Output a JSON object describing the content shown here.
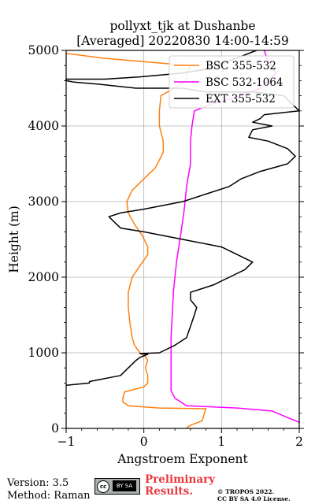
{
  "chart_data": {
    "type": "line",
    "title_line1": "pollyxt_tjk at Dushanbe",
    "title_line2": "[Averaged] 20220830 14:00-14:59",
    "xlabel": "Angstroem Exponent",
    "ylabel": "Height (m)",
    "xlim": [
      -1,
      2
    ],
    "ylim": [
      0,
      5000
    ],
    "xticks": [
      "−1",
      "0",
      "1",
      "2"
    ],
    "xtick_values": [
      -1,
      0,
      1,
      2
    ],
    "yticks": [
      "0",
      "1000",
      "2000",
      "3000",
      "4000",
      "5000"
    ],
    "ytick_values": [
      0,
      1000,
      2000,
      3000,
      4000,
      5000
    ],
    "grid": true,
    "legend_position": "top-right",
    "series": [
      {
        "name": "BSC 355-532",
        "color": "#ff7f0e",
        "points": [
          [
            0.55,
            10
          ],
          [
            0.62,
            50
          ],
          [
            0.75,
            100
          ],
          [
            0.78,
            200
          ],
          [
            0.8,
            260
          ],
          [
            0.2,
            270
          ],
          [
            -0.2,
            300
          ],
          [
            -0.27,
            350
          ],
          [
            -0.27,
            400
          ],
          [
            -0.25,
            480
          ],
          [
            0.0,
            550
          ],
          [
            0.05,
            600
          ],
          [
            0.05,
            700
          ],
          [
            0.02,
            800
          ],
          [
            0.05,
            900
          ],
          [
            0.02,
            950
          ],
          [
            -0.05,
            1000
          ],
          [
            -0.12,
            1100
          ],
          [
            -0.15,
            1200
          ],
          [
            -0.18,
            1400
          ],
          [
            -0.2,
            1600
          ],
          [
            -0.2,
            1800
          ],
          [
            -0.15,
            2000
          ],
          [
            -0.05,
            2150
          ],
          [
            0.05,
            2300
          ],
          [
            0.05,
            2400
          ],
          [
            -0.02,
            2550
          ],
          [
            -0.12,
            2700
          ],
          [
            -0.2,
            2850
          ],
          [
            -0.22,
            3000
          ],
          [
            -0.15,
            3150
          ],
          [
            0.0,
            3300
          ],
          [
            0.15,
            3450
          ],
          [
            0.25,
            3650
          ],
          [
            0.25,
            3800
          ],
          [
            0.2,
            4000
          ],
          [
            0.2,
            4200
          ],
          [
            0.22,
            4400
          ],
          [
            0.55,
            4600
          ],
          [
            0.55,
            4700
          ],
          [
            0.6,
            4800
          ],
          [
            0.35,
            4820
          ],
          [
            -0.55,
            4900
          ],
          [
            -1.0,
            4960
          ]
        ]
      },
      {
        "name": "BSC 532-1064",
        "color": "#ff00ff",
        "points": [
          [
            2.0,
            80
          ],
          [
            1.65,
            230
          ],
          [
            1.2,
            270
          ],
          [
            0.55,
            300
          ],
          [
            0.4,
            400
          ],
          [
            0.35,
            500
          ],
          [
            0.35,
            800
          ],
          [
            0.35,
            1200
          ],
          [
            0.38,
            1800
          ],
          [
            0.42,
            2200
          ],
          [
            0.48,
            2600
          ],
          [
            0.52,
            2900
          ],
          [
            0.55,
            3200
          ],
          [
            0.6,
            3500
          ],
          [
            0.6,
            3800
          ],
          [
            0.62,
            4000
          ],
          [
            0.65,
            4200
          ],
          [
            0.9,
            4300
          ],
          [
            1.2,
            4380
          ],
          [
            1.5,
            4500
          ],
          [
            1.7,
            4700
          ],
          [
            1.6,
            4850
          ],
          [
            1.55,
            5000
          ]
        ]
      },
      {
        "name": "EXT 355-532",
        "color": "#000000",
        "points": [
          [
            -1.0,
            570
          ],
          [
            -0.7,
            600
          ],
          [
            -0.7,
            620
          ],
          [
            -0.3,
            700
          ],
          [
            -0.2,
            800
          ],
          [
            -0.1,
            900
          ],
          [
            -0.05,
            940
          ],
          [
            0.05,
            980
          ],
          [
            -0.05,
            990
          ],
          [
            0.2,
            1000
          ],
          [
            0.4,
            1100
          ],
          [
            0.55,
            1200
          ],
          [
            0.6,
            1350
          ],
          [
            0.65,
            1500
          ],
          [
            0.68,
            1600
          ],
          [
            0.6,
            1700
          ],
          [
            0.6,
            1800
          ],
          [
            0.9,
            1900
          ],
          [
            1.1,
            2000
          ],
          [
            1.3,
            2100
          ],
          [
            1.4,
            2200
          ],
          [
            1.2,
            2300
          ],
          [
            1.0,
            2400
          ],
          [
            0.5,
            2500
          ],
          [
            0.0,
            2600
          ],
          [
            -0.3,
            2650
          ],
          [
            -0.35,
            2700
          ],
          [
            -0.45,
            2800
          ],
          [
            -0.3,
            2850
          ],
          [
            0.0,
            2900
          ],
          [
            0.5,
            3000
          ],
          [
            0.8,
            3100
          ],
          [
            1.1,
            3200
          ],
          [
            1.25,
            3300
          ],
          [
            1.5,
            3400
          ],
          [
            1.85,
            3500
          ],
          [
            1.95,
            3600
          ],
          [
            1.85,
            3700
          ],
          [
            1.6,
            3800
          ],
          [
            1.35,
            3850
          ],
          [
            1.4,
            3950
          ],
          [
            1.65,
            4000
          ],
          [
            1.4,
            4050
          ],
          [
            1.5,
            4100
          ],
          [
            1.55,
            4150
          ],
          [
            2.0,
            4200
          ],
          [
            1.8,
            4400
          ],
          [
            1.4,
            4450
          ],
          [
            0.8,
            4450
          ],
          [
            0.5,
            4500
          ],
          [
            -0.1,
            4500
          ],
          [
            -0.55,
            4550
          ],
          [
            -0.9,
            4580
          ],
          [
            -1.0,
            4600
          ],
          [
            -1.0,
            4620
          ],
          [
            -0.5,
            4620
          ],
          [
            -0.05,
            4650
          ],
          [
            0.5,
            4700
          ],
          [
            0.8,
            4750
          ],
          [
            1.2,
            4900
          ],
          [
            1.45,
            5000
          ]
        ]
      }
    ]
  },
  "footer": {
    "version": "Version: 3.5",
    "method": "Method: Raman",
    "preliminary_line1": "Preliminary",
    "preliminary_line2": "Results.",
    "copyright_line1": "© TROPOS 2022.",
    "copyright_line2": "CC BY SA 4.0 License.",
    "cc_badge_text": "cc",
    "cc_by_sa_text": "BY SA"
  }
}
